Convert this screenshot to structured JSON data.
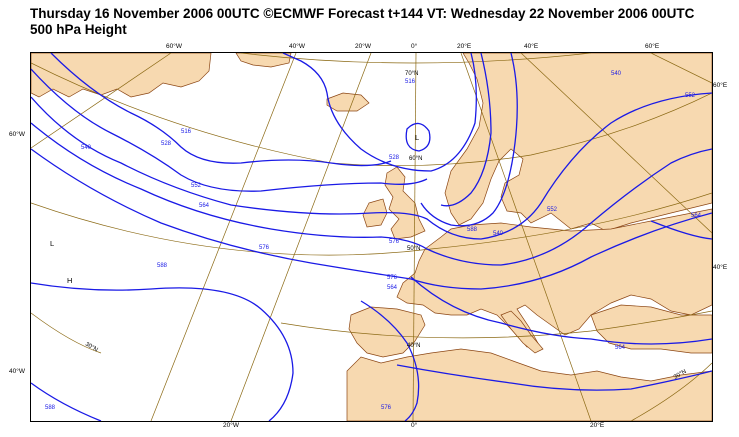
{
  "header": {
    "title_line1": "Thursday 16 November 2006 00UTC ©ECMWF Forecast t+144 VT: Wednesday 22 November 2006 00UTC",
    "title_line2": "500 hPa Height"
  },
  "colors": {
    "land": "#f7d9b0",
    "sea": "#ffffff",
    "contour": "#1a1ae6",
    "graticule": "#8b6914",
    "coast": "#8b4513"
  },
  "map": {
    "top_labels": [
      "60°W",
      "40°W",
      "20°W",
      "0°",
      "20°E",
      "40°E",
      "60°E"
    ],
    "bottom_labels": [
      "20°W",
      "0°",
      "20°E"
    ],
    "left_labels": [
      "60°W",
      "40°W"
    ],
    "right_labels": [
      "60°E",
      "40°E"
    ],
    "lat_labels": [
      "70°N",
      "60°N",
      "50°N",
      "40°N",
      "30°N",
      "30°N"
    ],
    "pressure_centers": [
      "L",
      "L",
      "H"
    ],
    "contour_labels": [
      "516",
      "528",
      "540",
      "552",
      "564",
      "576",
      "588",
      "540",
      "552",
      "564",
      "576",
      "588",
      "516",
      "528",
      "540",
      "552",
      "564",
      "576",
      "588",
      "564",
      "576"
    ]
  }
}
